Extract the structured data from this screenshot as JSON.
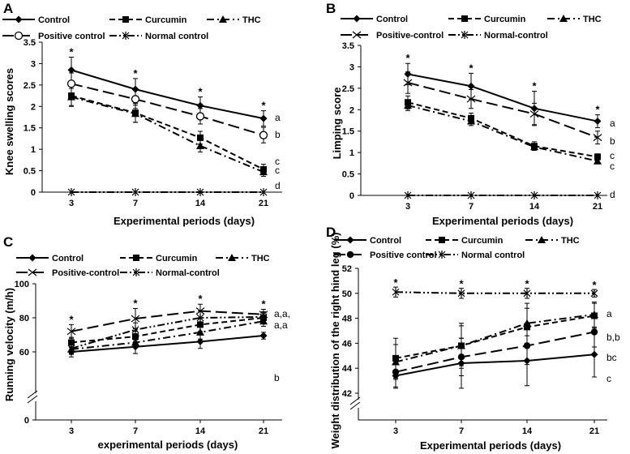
{
  "chart_data": [
    {
      "type": "line",
      "panel": "A",
      "title": "",
      "xlabel": "Experimental periods (days)",
      "ylabel": "Knee swelling scores",
      "categories": [
        "3",
        "7",
        "14",
        "21"
      ],
      "ylim": [
        0,
        3.5
      ],
      "yticks": [
        "0",
        "0.5",
        "1",
        "1.5",
        "2",
        "2.5",
        "3",
        "3.5"
      ],
      "series": [
        {
          "name": "Control",
          "values": [
            2.85,
            2.4,
            2.02,
            1.72
          ],
          "errors": [
            0.3,
            0.25,
            0.2,
            0.18
          ],
          "style": "solid",
          "marker": "diamond"
        },
        {
          "name": "Curcumin",
          "values": [
            2.25,
            1.85,
            1.27,
            0.53
          ],
          "errors": [
            0.25,
            0.22,
            0.15,
            0.12
          ],
          "style": "dash",
          "marker": "square"
        },
        {
          "name": "THC",
          "values": [
            2.22,
            1.83,
            1.08,
            0.47
          ],
          "errors": [
            0.2,
            0.2,
            0.14,
            0.1
          ],
          "style": "dashdot",
          "marker": "triangle"
        },
        {
          "name": "Positive control",
          "values": [
            2.53,
            2.17,
            1.77,
            1.33
          ],
          "errors": [
            0.25,
            0.22,
            0.18,
            0.18
          ],
          "style": "longdash",
          "marker": "circle-open"
        },
        {
          "name": "Normal control",
          "values": [
            0,
            0,
            0,
            0
          ],
          "errors": [
            0,
            0,
            0,
            0
          ],
          "style": "dashdotdot",
          "marker": "star"
        }
      ],
      "stars": [
        "*",
        "*",
        "*",
        "*"
      ],
      "end_labels": [
        "a",
        "b",
        "c",
        "c",
        "d"
      ]
    },
    {
      "type": "line",
      "panel": "B",
      "title": "",
      "xlabel": "Experimental  periods  (days)",
      "ylabel": "Limping  score",
      "categories": [
        "3",
        "7",
        "14",
        "21"
      ],
      "ylim": [
        0,
        3.5
      ],
      "yticks": [
        "0",
        "0.5",
        "1",
        "1.5",
        "2",
        "2.5",
        "3",
        "3.5"
      ],
      "series": [
        {
          "name": "Control",
          "values": [
            2.83,
            2.55,
            2.03,
            1.73
          ],
          "errors": [
            0.25,
            0.3,
            0.4,
            0.15
          ],
          "style": "solid",
          "marker": "diamond"
        },
        {
          "name": "Curcumin",
          "values": [
            2.17,
            1.8,
            1.15,
            0.9
          ],
          "errors": [
            0.15,
            0.12,
            0.1,
            0.07
          ],
          "style": "dash",
          "marker": "square"
        },
        {
          "name": "THC",
          "values": [
            2.1,
            1.73,
            1.13,
            0.8
          ],
          "errors": [
            0.12,
            0.1,
            0.08,
            0.06
          ],
          "style": "dashdot",
          "marker": "triangle"
        },
        {
          "name": "Positive-control",
          "values": [
            2.63,
            2.25,
            1.9,
            1.35
          ],
          "errors": [
            0.25,
            0.22,
            0.25,
            0.15
          ],
          "style": "longdash",
          "marker": "x"
        },
        {
          "name": "Normal-control",
          "values": [
            0,
            0,
            0,
            0
          ],
          "errors": [
            0,
            0,
            0,
            0
          ],
          "style": "dashdotdot",
          "marker": "star"
        }
      ],
      "stars": [
        "*",
        "*",
        "*",
        "*"
      ],
      "end_labels": [
        "a",
        "b",
        "c",
        "c",
        "d"
      ]
    },
    {
      "type": "line",
      "panel": "C",
      "title": "",
      "xlabel": "experimental  periods  (days)",
      "ylabel": "Running  velocity  (m/h)",
      "categories": [
        "3",
        "7",
        "14",
        "21"
      ],
      "ylim": [
        0,
        100
      ],
      "axis_break": true,
      "yticks": [
        "0",
        "60",
        "80",
        "100"
      ],
      "series": [
        {
          "name": "Control",
          "values": [
            60,
            63,
            66,
            69.5
          ],
          "errors": [
            3,
            4,
            4,
            2
          ],
          "style": "solid",
          "marker": "diamond"
        },
        {
          "name": "Curcumin",
          "values": [
            65.5,
            69,
            76,
            80
          ],
          "errors": [
            3,
            3,
            4,
            3
          ],
          "style": "dash",
          "marker": "square"
        },
        {
          "name": "THC",
          "values": [
            61.5,
            65.5,
            71.5,
            78
          ],
          "errors": [
            3,
            3,
            4,
            3
          ],
          "style": "dashdot",
          "marker": "triangle"
        },
        {
          "name": "Positive-control",
          "values": [
            72,
            79.5,
            84,
            82
          ],
          "errors": [
            4,
            6,
            4,
            3
          ],
          "style": "longdash",
          "marker": "x"
        },
        {
          "name": "Normal-control",
          "values": [
            62,
            73,
            80,
            80.5
          ],
          "errors": [
            3,
            4,
            4,
            3
          ],
          "style": "dashdotdot",
          "marker": "star"
        }
      ],
      "stars": [
        "*",
        "*",
        "*",
        "*"
      ],
      "end_labels": [
        "a,a,",
        "a,a",
        "b"
      ]
    },
    {
      "type": "line",
      "panel": "D",
      "title": "",
      "xlabel": "Experimental periods (days)",
      "ylabel": "Weight distribution of the right hind leg (%)",
      "categories": [
        "3",
        "7",
        "14",
        "21"
      ],
      "ylim": [
        40,
        52
      ],
      "axis_break": true,
      "yticks": [
        "42",
        "44",
        "46",
        "48",
        "50",
        "52"
      ],
      "series": [
        {
          "name": "Control",
          "values": [
            43.4,
            44.4,
            44.6,
            45.1
          ],
          "errors": [
            1.0,
            2.0,
            2.0,
            1.8
          ],
          "style": "solid",
          "marker": "diamond"
        },
        {
          "name": "Curcumin",
          "values": [
            44.8,
            45.8,
            47.3,
            48.2
          ],
          "errors": [
            1.6,
            1.8,
            1.5,
            1.0
          ],
          "style": "dash",
          "marker": "square"
        },
        {
          "name": "THC",
          "values": [
            44.5,
            45.8,
            47.6,
            48.3
          ],
          "errors": [
            1.4,
            1.6,
            1.6,
            1.0
          ],
          "style": "dashdot",
          "marker": "triangle"
        },
        {
          "name": "Positive control",
          "values": [
            43.7,
            44.9,
            45.8,
            46.9
          ],
          "errors": [
            1.2,
            1.5,
            1.5,
            1.2
          ],
          "style": "longdash",
          "marker": "circle"
        },
        {
          "name": "Normal control",
          "values": [
            50.1,
            50.0,
            50.0,
            50.0
          ],
          "errors": [
            0.4,
            0.4,
            0.4,
            0.3
          ],
          "style": "dashdotdot",
          "marker": "star"
        }
      ],
      "stars": [
        "*",
        "*",
        "*",
        "*"
      ],
      "end_labels": [
        "a",
        "b,b",
        "bc",
        "c"
      ]
    }
  ]
}
